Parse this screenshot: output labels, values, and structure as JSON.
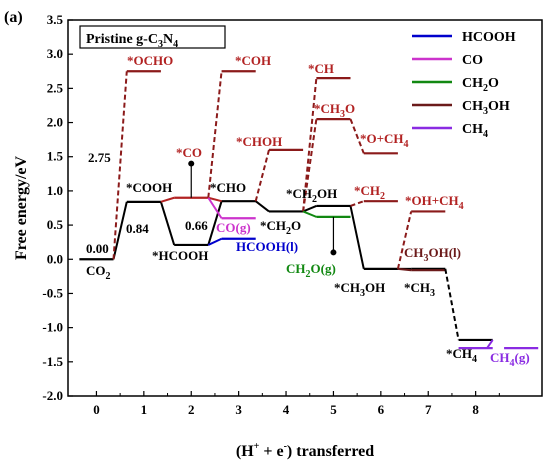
{
  "chart_data": {
    "type": "line",
    "panel_label": "(a)",
    "title": "Pristine g-C3N4",
    "title_parts": {
      "main": "Pristine g-C",
      "sub1": "3",
      "mid": "N",
      "sub2": "4"
    },
    "xlabel": {
      "a": "(H",
      "sup1": "+",
      "b": " + e",
      "sup2": "-",
      "c": ") transferred"
    },
    "ylabel": "Free energy/eV",
    "xlim": [
      -0.6,
      9.4
    ],
    "ylim": [
      -2.0,
      3.5
    ],
    "x_ticks": [
      0,
      1,
      2,
      3,
      4,
      5,
      6,
      7,
      8
    ],
    "y_ticks": [
      "-2.0",
      "-1.5",
      "-1.0",
      "-0.5",
      "0.0",
      "0.5",
      "1.0",
      "1.5",
      "2.0",
      "2.5",
      "3.0",
      "3.5"
    ],
    "legend": {
      "placement": "top-right",
      "entries": [
        {
          "name": "HCOOH",
          "color": "#0000cc"
        },
        {
          "name": "CO",
          "color": "#cc33cc"
        },
        {
          "name": "CH2O",
          "color": "#118811",
          "parts": [
            "CH",
            "2",
            "O"
          ]
        },
        {
          "name": "CH3OH",
          "color": "#6b1a1a",
          "parts": [
            "CH",
            "3",
            "OH"
          ]
        },
        {
          "name": "CH4",
          "color": "#8a2be2",
          "parts": [
            "CH",
            "4",
            ""
          ]
        }
      ]
    },
    "colors": {
      "black": "#000000",
      "hcooh": "#0000cc",
      "co": "#cc33cc",
      "ch2o": "#118811",
      "ch3oh": "#6b1a1a",
      "ch4": "#8a2be2",
      "dashed_up": "#8b1a1a",
      "level_red": "#b22222"
    },
    "series": [
      {
        "step": 0,
        "energy": 0.0,
        "label": "0.00",
        "path": "black"
      },
      {
        "step": 1,
        "energy": 0.84,
        "label": "*COOH",
        "path": "black"
      },
      {
        "step": 1,
        "energy": 2.75,
        "label": "*OCHO",
        "path": "dashed_up"
      },
      {
        "step": 2,
        "energy": 0.21,
        "label": "*HCOOH",
        "path": "black"
      },
      {
        "step": 2,
        "energy": 0.9,
        "label": "*CO",
        "path": "level_red"
      },
      {
        "step": 3,
        "energy": 2.75,
        "label": "*COH",
        "path": "dashed_up"
      },
      {
        "step": 3,
        "energy": 0.85,
        "label": "*CHO",
        "path": "black"
      },
      {
        "step": 3,
        "energy": 0.3,
        "label": "HCOOH(l)",
        "path": "hcooh"
      },
      {
        "step": 3,
        "energy": 0.6,
        "label": "CO(g)",
        "path": "co"
      },
      {
        "step": 4,
        "energy": 1.6,
        "label": "*CHOH",
        "path": "dashed_up"
      },
      {
        "step": 4,
        "energy": 0.7,
        "label": "*CH2O",
        "path": "black"
      },
      {
        "step": 5,
        "energy": 2.65,
        "label": "*CH",
        "path": "dashed_up"
      },
      {
        "step": 5,
        "energy": 2.05,
        "label": "*CH3O",
        "path": "dashed_up"
      },
      {
        "step": 5,
        "energy": 0.78,
        "label": "*CH2OH",
        "path": "black"
      },
      {
        "step": 5,
        "energy": 0.62,
        "label": "CH2O(g)",
        "path": "ch2o"
      },
      {
        "step": 6,
        "energy": 1.55,
        "label": "*O+CH4",
        "path": "dashed_up"
      },
      {
        "step": 6,
        "energy": 0.85,
        "label": "*CH2",
        "path": "dashed_up"
      },
      {
        "step": 6,
        "energy": -0.14,
        "label": "*CH3OH",
        "path": "black"
      },
      {
        "step": 7,
        "energy": 0.7,
        "label": "*OH+CH4",
        "path": "dashed_up"
      },
      {
        "step": 7,
        "energy": -0.14,
        "label": "*CH3",
        "path": "black"
      },
      {
        "step": 7,
        "energy": -0.16,
        "label": "CH3OH(l)",
        "path": "ch3oh"
      },
      {
        "step": 8,
        "energy": -1.18,
        "label": "*CH4",
        "path": "black"
      },
      {
        "step": 8,
        "energy": -1.3,
        "label": "CH4(g)",
        "path": "ch4"
      }
    ],
    "annotations": {
      "e000": "0.00",
      "e084": "0.84",
      "e275": "2.75",
      "e066": "0.66",
      "co2": {
        "main": "CO",
        "sub": "2"
      },
      "ocho": "*OCHO",
      "coh": "*COH",
      "ch": "*CH",
      "ch3o": {
        "main": "*CH",
        "sub": "3",
        "tail": "O"
      },
      "choh": "*CHOH",
      "o_ch4": {
        "main": "*O+CH",
        "sub": "4",
        "tail": ""
      },
      "co_star": "*CO",
      "cooh": "*COOH",
      "cho": "*CHO",
      "ch2oh": {
        "main": "*CH",
        "sub": "2",
        "tail": "OH"
      },
      "ch2": {
        "main": "*CH",
        "sub": "2",
        "tail": ""
      },
      "oh_ch4": {
        "main": "*OH+CH",
        "sub": "4",
        "tail": ""
      },
      "hcooh_star": "*HCOOH",
      "ch2o_star": {
        "main": "*CH",
        "sub": "2",
        "tail": "O"
      },
      "cog": "CO(g)",
      "hcoohl": "HCOOH(l)",
      "ch2og": {
        "main": "CH",
        "sub": "2",
        "tail": "O(g)"
      },
      "ch3ohl": {
        "main": "CH",
        "sub": "3",
        "tail": "OH(l)"
      },
      "ch3oh_star": {
        "main": "*CH",
        "sub": "3",
        "tail": "OH"
      },
      "ch3_star": {
        "main": "*CH",
        "sub": "3",
        "tail": ""
      },
      "ch4_star": {
        "main": "*CH",
        "sub": "4",
        "tail": ""
      },
      "ch4g": {
        "main": "CH",
        "sub": "4",
        "tail": "(g)"
      }
    }
  }
}
